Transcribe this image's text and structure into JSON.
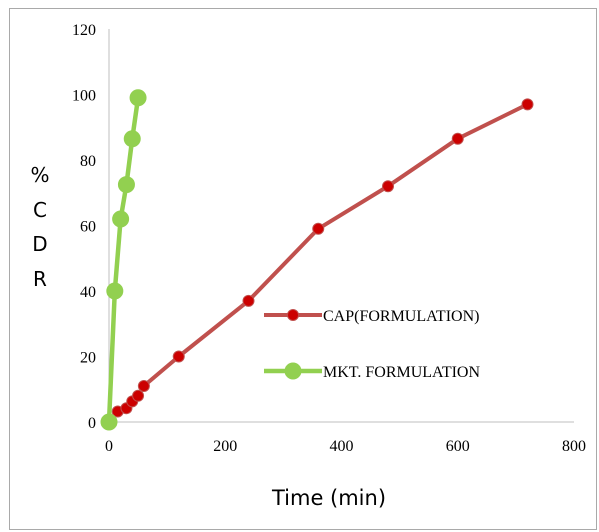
{
  "chart_data": {
    "type": "line",
    "title": "",
    "xlabel": "Time (min)",
    "ylabel_lines": [
      "%",
      "C",
      "D",
      "R"
    ],
    "xlim": [
      0,
      800
    ],
    "ylim": [
      0,
      120
    ],
    "xticks": [
      0,
      200,
      400,
      600,
      800
    ],
    "yticks": [
      0,
      20,
      40,
      60,
      80,
      100,
      120
    ],
    "grid": false,
    "legend_position": "right",
    "series": [
      {
        "name": "CAP(FORMULATION)",
        "color": "#c0504d",
        "marker_color": "#cc0000",
        "x": [
          0,
          15,
          30,
          40,
          50,
          60,
          120,
          240,
          360,
          480,
          600,
          720
        ],
        "y": [
          0,
          3.2,
          4.2,
          6.3,
          8,
          11,
          20,
          37,
          59,
          72,
          86.5,
          97
        ]
      },
      {
        "name": "MKT. FORMULATION",
        "color": "#92d050",
        "marker_color": "#92d050",
        "x": [
          0,
          10,
          20,
          30,
          40,
          50
        ],
        "y": [
          0,
          40,
          62,
          72.5,
          86.5,
          99
        ]
      }
    ]
  }
}
